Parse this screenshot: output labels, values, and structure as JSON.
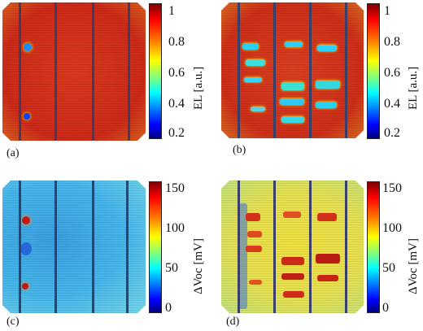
{
  "panels": [
    {
      "label": "(a)",
      "colorbar_title": "EL [a.u.]",
      "ticks": [
        "1",
        "0.8",
        "0.6",
        "0.4",
        "0.2"
      ]
    },
    {
      "label": "(b)",
      "colorbar_title": "EL [a.u.]",
      "ticks": [
        "1",
        "0.8",
        "0.6",
        "0.4",
        "0.2"
      ]
    },
    {
      "label": "(c)",
      "colorbar_title": "ΔVoc [mV]",
      "ticks": [
        "150",
        "100",
        "50",
        "0"
      ]
    },
    {
      "label": "(d)",
      "colorbar_title": "ΔVoc [mV]",
      "ticks": [
        "150",
        "100",
        "50",
        "0"
      ]
    }
  ],
  "colors": {
    "jet_scale": [
      "#00007f",
      "#0000ff",
      "#007fff",
      "#00ffff",
      "#7fff7f",
      "#ffff00",
      "#ff7f00",
      "#ff0000",
      "#7f0000"
    ],
    "el_base": "#d0321e",
    "voc_low_base": "#3fb2e6",
    "voc_high_base": "#e8e050"
  }
}
